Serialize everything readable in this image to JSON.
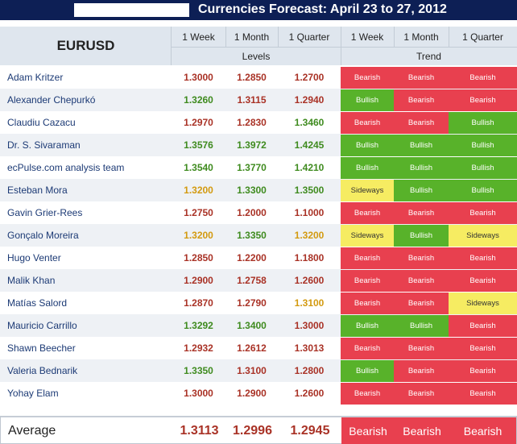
{
  "title": "Currencies Forecast: April 23 to 27, 2012",
  "pair": "EURUSD",
  "columns": [
    "1 Week",
    "1 Month",
    "1 Quarter"
  ],
  "groups": {
    "levels": "Levels",
    "trend": "Trend"
  },
  "colors": {
    "bearish": "#e8404f",
    "bullish": "#58b22a",
    "sideways": "#f6ec62",
    "level_bearish": "#a93226",
    "level_bullish": "#3f8b1f",
    "level_sideways": "#d39a10"
  },
  "rows": [
    {
      "name": "Adam Kritzer",
      "levels": [
        "1.3000",
        "1.2850",
        "1.2700"
      ],
      "level_tones": [
        "bearish",
        "bearish",
        "bearish"
      ],
      "trend": [
        "Bearish",
        "Bearish",
        "Bearish"
      ]
    },
    {
      "name": "Alexander Chepurkó",
      "levels": [
        "1.3260",
        "1.3115",
        "1.2940"
      ],
      "level_tones": [
        "bullish",
        "bearish",
        "bearish"
      ],
      "trend": [
        "Bullish",
        "Bearish",
        "Bearish"
      ]
    },
    {
      "name": "Claudiu Cazacu",
      "levels": [
        "1.2970",
        "1.2830",
        "1.3460"
      ],
      "level_tones": [
        "bearish",
        "bearish",
        "bullish"
      ],
      "trend": [
        "Bearish",
        "Bearish",
        "Bullish"
      ]
    },
    {
      "name": "Dr. S. Sivaraman",
      "levels": [
        "1.3576",
        "1.3972",
        "1.4245"
      ],
      "level_tones": [
        "bullish",
        "bullish",
        "bullish"
      ],
      "trend": [
        "Bullish",
        "Bullish",
        "Bullish"
      ]
    },
    {
      "name": "ecPulse.com analysis team",
      "levels": [
        "1.3540",
        "1.3770",
        "1.4210"
      ],
      "level_tones": [
        "bullish",
        "bullish",
        "bullish"
      ],
      "trend": [
        "Bullish",
        "Bullish",
        "Bullish"
      ]
    },
    {
      "name": "Esteban Mora",
      "levels": [
        "1.3200",
        "1.3300",
        "1.3500"
      ],
      "level_tones": [
        "sideways",
        "bullish",
        "bullish"
      ],
      "trend": [
        "Sideways",
        "Bullish",
        "Bullish"
      ]
    },
    {
      "name": "Gavin Grier-Rees",
      "levels": [
        "1.2750",
        "1.2000",
        "1.1000"
      ],
      "level_tones": [
        "bearish",
        "bearish",
        "bearish"
      ],
      "trend": [
        "Bearish",
        "Bearish",
        "Bearish"
      ]
    },
    {
      "name": "Gonçalo Moreira",
      "levels": [
        "1.3200",
        "1.3350",
        "1.3200"
      ],
      "level_tones": [
        "sideways",
        "bullish",
        "sideways"
      ],
      "trend": [
        "Sideways",
        "Bullish",
        "Sideways"
      ]
    },
    {
      "name": "Hugo Venter",
      "levels": [
        "1.2850",
        "1.2200",
        "1.1800"
      ],
      "level_tones": [
        "bearish",
        "bearish",
        "bearish"
      ],
      "trend": [
        "Bearish",
        "Bearish",
        "Bearish"
      ]
    },
    {
      "name": "Malik Khan",
      "levels": [
        "1.2900",
        "1.2758",
        "1.2600"
      ],
      "level_tones": [
        "bearish",
        "bearish",
        "bearish"
      ],
      "trend": [
        "Bearish",
        "Bearish",
        "Bearish"
      ]
    },
    {
      "name": "Matías Salord",
      "levels": [
        "1.2870",
        "1.2790",
        "1.3100"
      ],
      "level_tones": [
        "bearish",
        "bearish",
        "sideways"
      ],
      "trend": [
        "Bearish",
        "Bearish",
        "Sideways"
      ]
    },
    {
      "name": "Mauricio Carrillo",
      "levels": [
        "1.3292",
        "1.3400",
        "1.3000"
      ],
      "level_tones": [
        "bullish",
        "bullish",
        "bearish"
      ],
      "trend": [
        "Bullish",
        "Bullish",
        "Bearish"
      ]
    },
    {
      "name": "Shawn Beecher",
      "levels": [
        "1.2932",
        "1.2612",
        "1.3013"
      ],
      "level_tones": [
        "bearish",
        "bearish",
        "bearish"
      ],
      "trend": [
        "Bearish",
        "Bearish",
        "Bearish"
      ]
    },
    {
      "name": "Valeria Bednarik",
      "levels": [
        "1.3350",
        "1.3100",
        "1.2800"
      ],
      "level_tones": [
        "bullish",
        "bearish",
        "bearish"
      ],
      "trend": [
        "Bullish",
        "Bearish",
        "Bearish"
      ]
    },
    {
      "name": "Yohay Elam",
      "levels": [
        "1.3000",
        "1.2900",
        "1.2600"
      ],
      "level_tones": [
        "bearish",
        "bearish",
        "bearish"
      ],
      "trend": [
        "Bearish",
        "Bearish",
        "Bearish"
      ]
    }
  ],
  "average": {
    "label": "Average",
    "levels": [
      "1.3113",
      "1.2996",
      "1.2945"
    ],
    "trend": [
      "Bearish",
      "Bearish",
      "Bearish"
    ]
  }
}
